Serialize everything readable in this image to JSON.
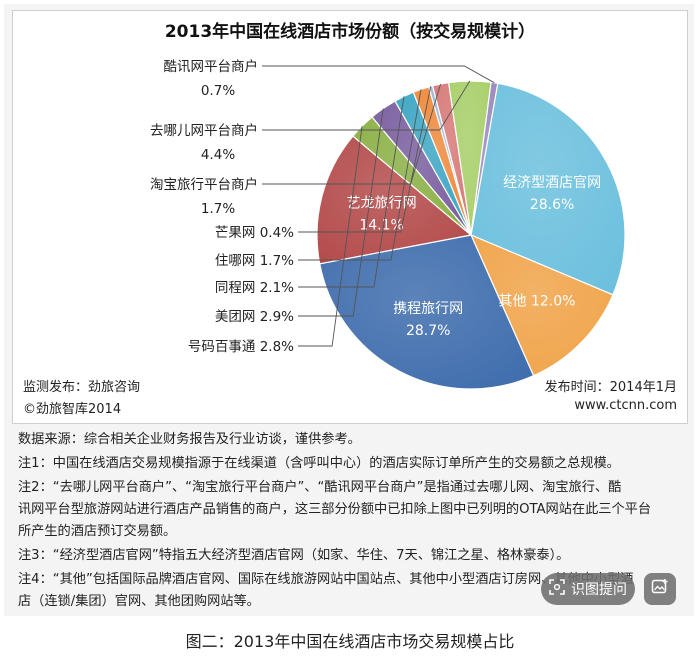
{
  "chart_data": {
    "type": "pie",
    "title": "2013年中国在线酒店市场份额（按交易规模计）",
    "slices": [
      {
        "label": "经济型酒店官网",
        "value": 28.6,
        "display": "28.6%",
        "color": "#6cc0de",
        "label_inside": true
      },
      {
        "label": "其他",
        "value": 12.0,
        "display": "12.0%",
        "color": "#f0a44a",
        "label_inside": true
      },
      {
        "label": "携程旅行网",
        "value": 28.7,
        "display": "28.7%",
        "color": "#3f6dad",
        "label_inside": true
      },
      {
        "label": "艺龙旅行网",
        "value": 14.1,
        "display": "14.1%",
        "color": "#b44b4b",
        "label_inside": true
      },
      {
        "label": "号码百事通",
        "value": 2.8,
        "display": "2.8%",
        "color": "#8bb046",
        "label_inside": false
      },
      {
        "label": "美团网",
        "value": 2.9,
        "display": "2.9%",
        "color": "#7a5fa0",
        "label_inside": false
      },
      {
        "label": "同程网",
        "value": 2.1,
        "display": "2.1%",
        "color": "#3da6c4",
        "label_inside": false
      },
      {
        "label": "住哪网",
        "value": 1.7,
        "display": "1.7%",
        "color": "#ee8a3c",
        "label_inside": false
      },
      {
        "label": "芒果网",
        "value": 0.4,
        "display": "0.4%",
        "color": "#9fb6d9",
        "label_inside": false
      },
      {
        "label": "淘宝旅行平台商户",
        "value": 1.7,
        "display": "1.7%",
        "color": "#d67a78",
        "label_inside": false
      },
      {
        "label": "去哪儿网平台商户",
        "value": 4.4,
        "display": "4.4%",
        "color": "#a8cf6a",
        "label_inside": false
      },
      {
        "label": "酷讯网平台商户",
        "value": 0.7,
        "display": "0.7%",
        "color": "#9a87bf",
        "label_inside": false
      }
    ]
  },
  "source": {
    "publisher": "监测发布：劲旅咨询",
    "copyright": "©劲旅智库2014",
    "date": "发布时间：2014年1月",
    "website": "www.ctcnn.com"
  },
  "notes": [
    "数据来源：综合相关企业财务报告及行业访谈，谨供参考。",
    "注1：中国在线酒店交易规模指源于在线渠道（含呼叫中心）的酒店实际订单所产生的交易额之总规模。",
    "注2：“去哪儿网平台商户”、“淘宝旅行平台商户”、“酷讯网平台商户”是指通过去哪儿网、淘宝旅行、酷",
    "讯网平台型旅游网站进行酒店产品销售的商户，这三部分份额中已扣除上图中已列明的OTA网站在此三个平台",
    "所产生的酒店预订交易额。",
    "注3：“经济型酒店官网”特指五大经济型酒店官网（如家、华住、7天、锦江之星、格林豪泰）。",
    "注4：“其他”包括国际品牌酒店官网、国际在线旅游网站中国站点、其他中小型酒店订房网、其他中小型酒",
    "店（连锁/集团）官网、其他团购网站等。"
  ],
  "overlay": {
    "ocr_label": "识图提问"
  },
  "caption": "图二：2013年中国在线酒店市场交易规模占比"
}
